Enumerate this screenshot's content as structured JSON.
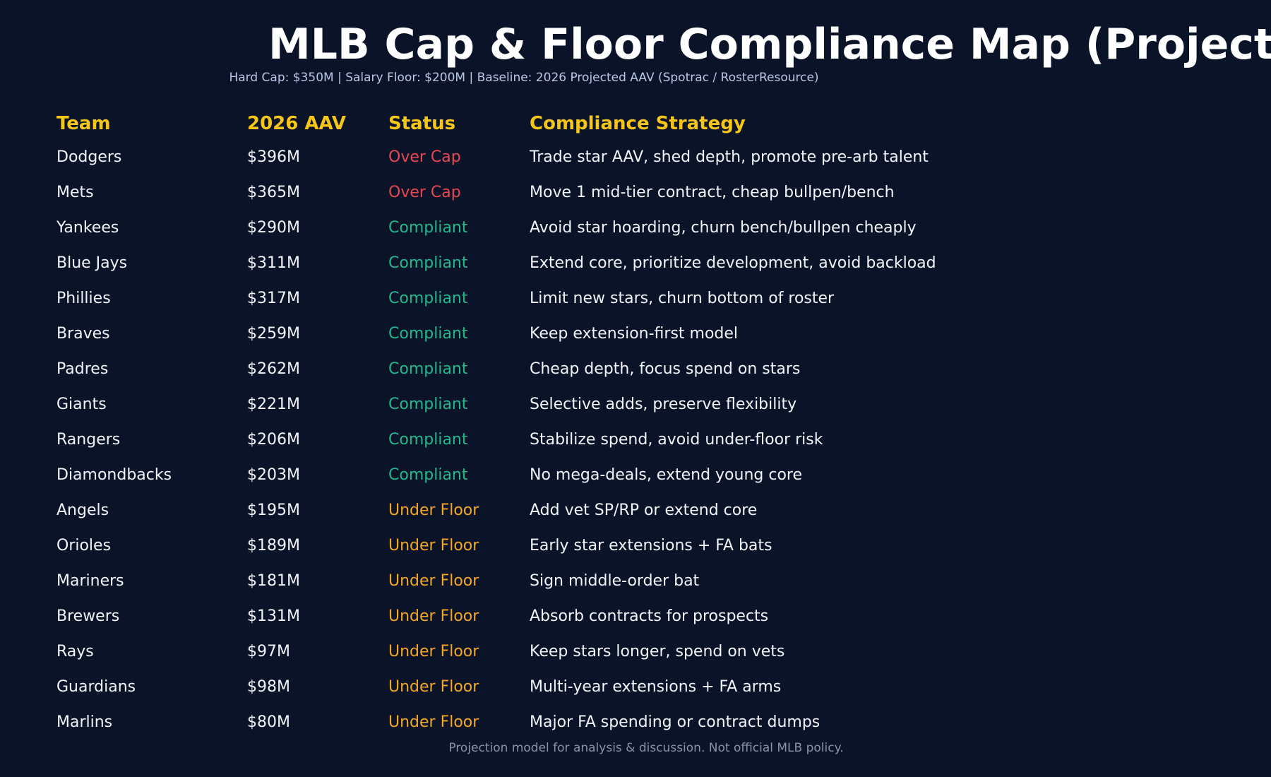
{
  "header": {
    "title": "MLB Cap & Floor Compliance Map (Project",
    "subtitle": "Hard Cap: $350M | Salary Floor: $200M | Baseline: 2026 Projected AAV (Spotrac / RosterResource)"
  },
  "table": {
    "columns": [
      "Team",
      "2026 AAV",
      "Status",
      "Compliance Strategy"
    ],
    "status_colors": {
      "Over Cap": "#e8474f",
      "Compliant": "#1fb98c",
      "Under Floor": "#f5a623"
    },
    "rows": [
      [
        "Dodgers",
        "$396M",
        "Over Cap",
        "Trade star AAV, shed depth, promote pre-arb talent"
      ],
      [
        "Mets",
        "$365M",
        "Over Cap",
        "Move 1 mid-tier contract, cheap bullpen/bench"
      ],
      [
        "Yankees",
        "$290M",
        "Compliant",
        "Avoid star hoarding, churn bench/bullpen cheaply"
      ],
      [
        "Blue Jays",
        "$311M",
        "Compliant",
        "Extend core, prioritize development, avoid backload"
      ],
      [
        "Phillies",
        "$317M",
        "Compliant",
        "Limit new stars, churn bottom of roster"
      ],
      [
        "Braves",
        "$259M",
        "Compliant",
        "Keep extension-first model"
      ],
      [
        "Padres",
        "$262M",
        "Compliant",
        "Cheap depth, focus spend on stars"
      ],
      [
        "Giants",
        "$221M",
        "Compliant",
        "Selective adds, preserve flexibility"
      ],
      [
        "Rangers",
        "$206M",
        "Compliant",
        "Stabilize spend, avoid under-floor risk"
      ],
      [
        "Diamondbacks",
        "$203M",
        "Compliant",
        "No mega-deals, extend young core"
      ],
      [
        "Angels",
        "$195M",
        "Under Floor",
        "Add vet SP/RP or extend core"
      ],
      [
        "Orioles",
        "$189M",
        "Under Floor",
        "Early star extensions + FA bats"
      ],
      [
        "Mariners",
        "$181M",
        "Under Floor",
        "Sign middle-order bat"
      ],
      [
        "Brewers",
        "$131M",
        "Under Floor",
        "Absorb contracts for prospects"
      ],
      [
        "Rays",
        "$97M",
        "Under Floor",
        "Keep stars longer, spend on vets"
      ],
      [
        "Guardians",
        "$98M",
        "Under Floor",
        "Multi-year extensions + FA arms"
      ],
      [
        "Marlins",
        "$80M",
        "Under Floor",
        "Major FA spending or contract dumps"
      ]
    ]
  },
  "footer": {
    "note": "Projection model for analysis & discussion. Not official MLB policy."
  }
}
